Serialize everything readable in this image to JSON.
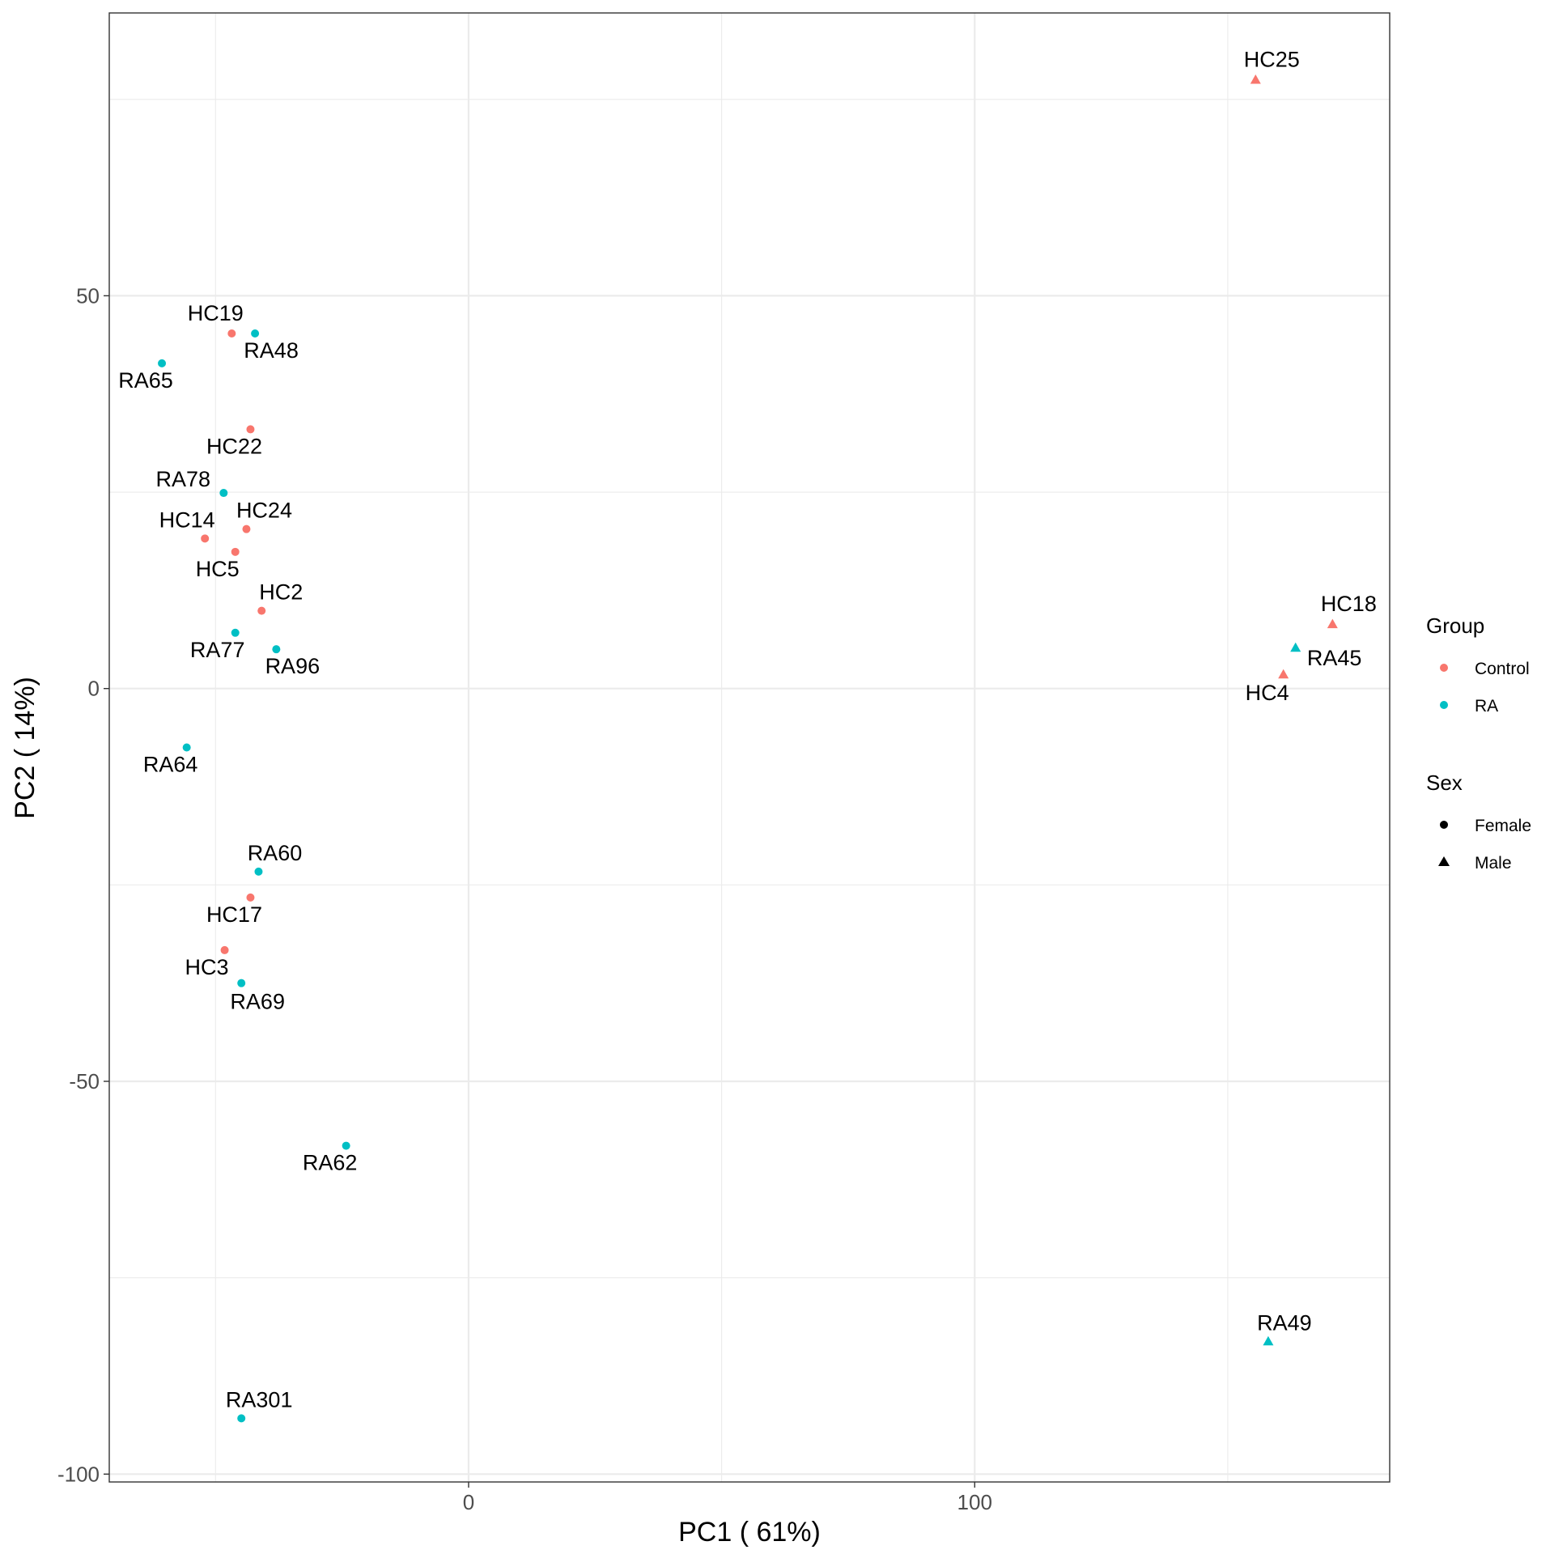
{
  "chart_data": {
    "type": "scatter",
    "title": "",
    "xlabel": "PC1 ( 61%)",
    "ylabel": "PC2 ( 14%)",
    "xlim": [
      -71,
      182
    ],
    "ylim": [
      -101,
      86
    ],
    "x_ticks": [
      0,
      100
    ],
    "y_ticks": [
      50,
      0,
      -50,
      -100
    ],
    "x_tick_labels": [
      "0",
      "100"
    ],
    "y_tick_labels": [
      "50",
      "0",
      "-50",
      "-100"
    ],
    "grid": true,
    "legend_position": "right",
    "colors": {
      "Control": "#F8766D",
      "RA": "#00BFC4"
    },
    "legends": {
      "group": {
        "title": "Group",
        "items": [
          "Control",
          "RA"
        ]
      },
      "sex": {
        "title": "Sex",
        "items": [
          "Female",
          "Male"
        ]
      }
    },
    "points": [
      {
        "label": "HC25",
        "x": 155.5,
        "y": 77.5,
        "group": "Control",
        "sex": "Male"
      },
      {
        "label": "HC19",
        "x": -46.8,
        "y": 45.2,
        "group": "Control",
        "sex": "Female"
      },
      {
        "label": "RA48",
        "x": -42.2,
        "y": 45.2,
        "group": "RA",
        "sex": "Female"
      },
      {
        "label": "RA65",
        "x": -60.6,
        "y": 41.4,
        "group": "RA",
        "sex": "Female"
      },
      {
        "label": "HC22",
        "x": -43.1,
        "y": 33.0,
        "group": "Control",
        "sex": "Female"
      },
      {
        "label": "RA78",
        "x": -48.4,
        "y": 24.9,
        "group": "RA",
        "sex": "Female"
      },
      {
        "label": "HC24",
        "x": -43.9,
        "y": 20.3,
        "group": "Control",
        "sex": "Female"
      },
      {
        "label": "HC14",
        "x": -52.1,
        "y": 19.1,
        "group": "Control",
        "sex": "Female"
      },
      {
        "label": "HC5",
        "x": -46.1,
        "y": 17.4,
        "group": "Control",
        "sex": "Female"
      },
      {
        "label": "HC2",
        "x": -40.9,
        "y": 9.9,
        "group": "Control",
        "sex": "Female"
      },
      {
        "label": "RA77",
        "x": -46.1,
        "y": 7.1,
        "group": "RA",
        "sex": "Female"
      },
      {
        "label": "RA96",
        "x": -38.0,
        "y": 5.0,
        "group": "RA",
        "sex": "Female"
      },
      {
        "label": "HC18",
        "x": 170.7,
        "y": 8.2,
        "group": "Control",
        "sex": "Male"
      },
      {
        "label": "RA45",
        "x": 163.4,
        "y": 5.2,
        "group": "RA",
        "sex": "Male"
      },
      {
        "label": "HC4",
        "x": 161.0,
        "y": 1.8,
        "group": "Control",
        "sex": "Male"
      },
      {
        "label": "RA64",
        "x": -55.7,
        "y": -7.5,
        "group": "RA",
        "sex": "Female"
      },
      {
        "label": "RA60",
        "x": -41.5,
        "y": -23.3,
        "group": "RA",
        "sex": "Female"
      },
      {
        "label": "HC17",
        "x": -43.1,
        "y": -26.6,
        "group": "Control",
        "sex": "Female"
      },
      {
        "label": "HC3",
        "x": -48.2,
        "y": -33.3,
        "group": "Control",
        "sex": "Female"
      },
      {
        "label": "RA69",
        "x": -44.9,
        "y": -37.5,
        "group": "RA",
        "sex": "Female"
      },
      {
        "label": "RA62",
        "x": -24.2,
        "y": -58.2,
        "group": "RA",
        "sex": "Female"
      },
      {
        "label": "RA49",
        "x": 158.0,
        "y": -83.1,
        "group": "RA",
        "sex": "Male"
      },
      {
        "label": "RA301",
        "x": -44.9,
        "y": -92.9,
        "group": "RA",
        "sex": "Female"
      }
    ]
  }
}
